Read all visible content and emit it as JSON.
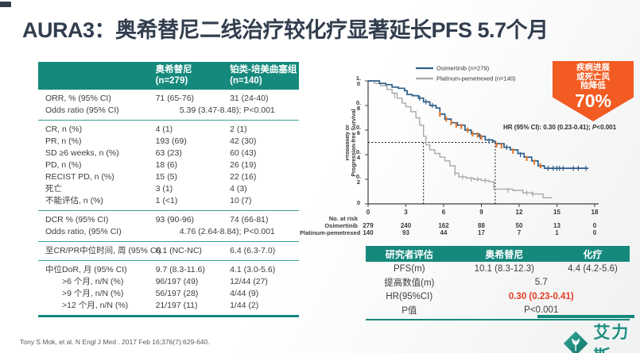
{
  "title": "AURA3：奥希替尼二线治疗较化疗显著延长PFS 5.7个月",
  "colors": {
    "teal": "#16897d",
    "title_dark": "#323e4e",
    "badge_orange": "#f25b21",
    "red_highlight": "#e23b22",
    "osimertinib_blue": "#2d5f8a",
    "chemo_gray": "#a9a9a9",
    "censor_orange": "#e87a2e"
  },
  "results_table": {
    "col_headers": [
      {
        "line1": "奥希替尼",
        "line2": "(n=279)"
      },
      {
        "line1": "铂类-培美曲塞组",
        "line2": "(n=140)"
      }
    ],
    "groups": [
      {
        "rows": [
          {
            "label": "ORR, % (95% CI)",
            "v1": "71 (65-76)",
            "v2": "31 (24-40)"
          },
          {
            "label": "Odds ratio (95% CI)",
            "span": "5.39 (3.47-8.48); P<0.001"
          }
        ]
      },
      {
        "rows": [
          {
            "label": "CR, n (%)",
            "v1": "4 (1)",
            "v2": "2 (1)"
          },
          {
            "label": "PR, n (%)",
            "v1": "193 (69)",
            "v2": "42 (30)"
          },
          {
            "label": "SD ≥6 weeks, n (%)",
            "v1": "63 (23)",
            "v2": "60 (43)"
          },
          {
            "label": "PD, n (%)",
            "v1": "18 (6)",
            "v2": "26 (19)"
          },
          {
            "label": "RECIST PD, n (%)",
            "v1": "15 (5)",
            "v2": "22 (16)"
          },
          {
            "label": "死亡",
            "v1": "3 (1)",
            "v2": "4 (3)"
          },
          {
            "label": "不能评估, n (%)",
            "v1": "1 (<1)",
            "v2": "10 (7)"
          }
        ]
      },
      {
        "rows": [
          {
            "label": "DCR % (95% CI)",
            "v1": "93 (90-96)",
            "v2": "74 (66-81)"
          },
          {
            "label": "Odds ratio, (95% CI)",
            "span": "4.76 (2.64-8.84); P<0.001"
          }
        ]
      },
      {
        "rows": [
          {
            "label": "至CR/PR中位时间, 周 (95% CI)",
            "v1": "6.1 (NC-NC)",
            "v2": "6.4 (6.3-7.0)"
          }
        ]
      },
      {
        "rows": [
          {
            "label": "中位DoR, 月 (95% CI)",
            "v1": "9.7 (8.3-11.6)",
            "v2": "4.1 (3.0-5.6)"
          },
          {
            "label": ">6 个月, n/N (%)",
            "v1": "96/197 (49)",
            "v2": "12/44 (27)",
            "indent": true
          },
          {
            "label": ">9 个月, n/N (%)",
            "v1": "56/197 (28)",
            "v2": "4/44 (9)",
            "indent": true
          },
          {
            "label": ">12 个月, n/N (%)",
            "v1": "21/197 (11)",
            "v2": "1/44 (2)",
            "indent": true
          }
        ]
      }
    ]
  },
  "badge": {
    "lines": [
      "疾病进展",
      "或死亡风",
      "险降低"
    ],
    "value": "70%"
  },
  "chart_data": {
    "type": "line",
    "subtype": "kaplan-meier",
    "ylabel_lines": [
      "Probability of",
      "Progression-free Survival"
    ],
    "ytick_labels": [
      "1.0",
      "0.8",
      "0.6",
      "0.4",
      "0.2",
      "0"
    ],
    "xticks": [
      0,
      3,
      6,
      9,
      12,
      15,
      18
    ],
    "xlim": [
      0,
      18
    ],
    "ylim": [
      0,
      1
    ],
    "grid": false,
    "legend_position": "top-inside",
    "legend": [
      {
        "name": "Osimertinib (n=279)",
        "color": "#2d5f8a"
      },
      {
        "name": "Platinum-pemetrexed (n=140)",
        "color": "#a9a9a9"
      }
    ],
    "annotation": {
      "before": "HR (95% CI): 0.30 (0.23-0.41); ",
      "p": "P",
      "after": "<0.001"
    },
    "median_markers": {
      "y": 0.5,
      "x_chemo": 4.4,
      "x_osimertinib": 10.1
    },
    "series": [
      {
        "name": "Osimertinib",
        "color": "#2d5f8a",
        "median_months": 10.1,
        "points": [
          [
            0,
            1.0
          ],
          [
            0.9,
            0.98
          ],
          [
            1.4,
            0.97
          ],
          [
            1.9,
            0.95
          ],
          [
            2.4,
            0.94
          ],
          [
            2.9,
            0.92
          ],
          [
            3.1,
            0.89
          ],
          [
            3.5,
            0.88
          ],
          [
            4.0,
            0.86
          ],
          [
            4.4,
            0.83
          ],
          [
            4.9,
            0.8
          ],
          [
            5.4,
            0.78
          ],
          [
            5.7,
            0.73
          ],
          [
            6.1,
            0.69
          ],
          [
            6.6,
            0.66
          ],
          [
            7.1,
            0.64
          ],
          [
            7.7,
            0.6
          ],
          [
            8.2,
            0.57
          ],
          [
            8.8,
            0.55
          ],
          [
            9.3,
            0.52
          ],
          [
            9.9,
            0.51
          ],
          [
            10.1,
            0.49
          ],
          [
            10.8,
            0.46
          ],
          [
            11.3,
            0.44
          ],
          [
            11.9,
            0.41
          ],
          [
            12.4,
            0.38
          ],
          [
            13.0,
            0.35
          ],
          [
            13.5,
            0.31
          ],
          [
            14.0,
            0.29
          ],
          [
            17.5,
            0.29
          ]
        ],
        "censors_orange": [
          [
            5.7,
            0.73
          ],
          [
            6.2,
            0.69
          ],
          [
            6.6,
            0.66
          ],
          [
            7.0,
            0.64
          ],
          [
            7.4,
            0.63
          ],
          [
            7.9,
            0.6
          ],
          [
            8.3,
            0.57
          ],
          [
            8.7,
            0.56
          ],
          [
            9.0,
            0.54
          ],
          [
            10.2,
            0.48
          ],
          [
            10.6,
            0.47
          ],
          [
            11.5,
            0.43
          ],
          [
            12.6,
            0.37
          ],
          [
            13.2,
            0.34
          ],
          [
            13.7,
            0.31
          ]
        ],
        "censors_blue": [
          [
            4.1,
            0.86
          ],
          [
            4.6,
            0.83
          ],
          [
            5.1,
            0.8
          ],
          [
            8.9,
            0.55
          ],
          [
            9.6,
            0.51
          ],
          [
            11.0,
            0.46
          ],
          [
            12.1,
            0.4
          ],
          [
            14.3,
            0.29
          ],
          [
            14.7,
            0.29
          ],
          [
            15.0,
            0.29
          ],
          [
            15.2,
            0.29
          ],
          [
            15.5,
            0.29
          ],
          [
            16.3,
            0.29
          ],
          [
            16.7,
            0.29
          ],
          [
            17.3,
            0.29
          ]
        ]
      },
      {
        "name": "Platinum-pemetrexed",
        "color": "#a9a9a9",
        "median_months": 4.4,
        "points": [
          [
            0,
            1.0
          ],
          [
            0.5,
            0.98
          ],
          [
            1.0,
            0.96
          ],
          [
            1.5,
            0.93
          ],
          [
            1.9,
            0.9
          ],
          [
            2.3,
            0.86
          ],
          [
            2.7,
            0.82
          ],
          [
            3.0,
            0.79
          ],
          [
            3.4,
            0.75
          ],
          [
            3.8,
            0.7
          ],
          [
            4.1,
            0.64
          ],
          [
            4.4,
            0.55
          ],
          [
            4.6,
            0.48
          ],
          [
            4.9,
            0.44
          ],
          [
            5.3,
            0.41
          ],
          [
            5.7,
            0.38
          ],
          [
            6.1,
            0.35
          ],
          [
            6.5,
            0.31
          ],
          [
            6.9,
            0.25
          ],
          [
            7.2,
            0.22
          ],
          [
            7.8,
            0.21
          ],
          [
            8.4,
            0.2
          ],
          [
            9.0,
            0.19
          ],
          [
            9.6,
            0.18
          ],
          [
            10.0,
            0.12
          ],
          [
            11.5,
            0.11
          ],
          [
            12.3,
            0.09
          ],
          [
            13.0,
            0.08
          ],
          [
            13.9,
            0.05
          ],
          [
            14.6,
            0.05
          ]
        ],
        "censors_gray": [
          [
            2.1,
            0.88
          ],
          [
            6.9,
            0.25
          ],
          [
            7.5,
            0.22
          ],
          [
            8.2,
            0.2
          ],
          [
            8.7,
            0.2
          ],
          [
            9.3,
            0.19
          ],
          [
            11.1,
            0.11
          ],
          [
            12.6,
            0.09
          ],
          [
            13.1,
            0.08
          ]
        ]
      }
    ],
    "at_risk": {
      "label": "No. at risk",
      "rows": [
        {
          "name": "Osimertinib",
          "values": [
            "279",
            "240",
            "162",
            "88",
            "50",
            "13",
            "0"
          ]
        },
        {
          "name": "Platinum-pemetrexed",
          "values": [
            "140",
            "93",
            "44",
            "17",
            "7",
            "1",
            "0"
          ]
        }
      ]
    }
  },
  "summary_table": {
    "headers": [
      "研究者评估",
      "奥希替尼",
      "化疗"
    ],
    "rows": [
      {
        "label": "PFS(m)",
        "v1": "10.1 (8.3-12.3)",
        "v2": "4.4 (4.2-5.6)"
      },
      {
        "label": "提高数值(m)",
        "span": "5.7"
      },
      {
        "label": "HR(95%CI)",
        "span": "0.30 (0.23-0.41)",
        "red": true
      },
      {
        "label": "P值",
        "span": "P<0.001"
      }
    ]
  },
  "footer": {
    "citation": "Tony S Mok, et al. N Engl J Med . 2017 Feb 16;376(7):629-640.",
    "logo_text": "艾力斯"
  }
}
